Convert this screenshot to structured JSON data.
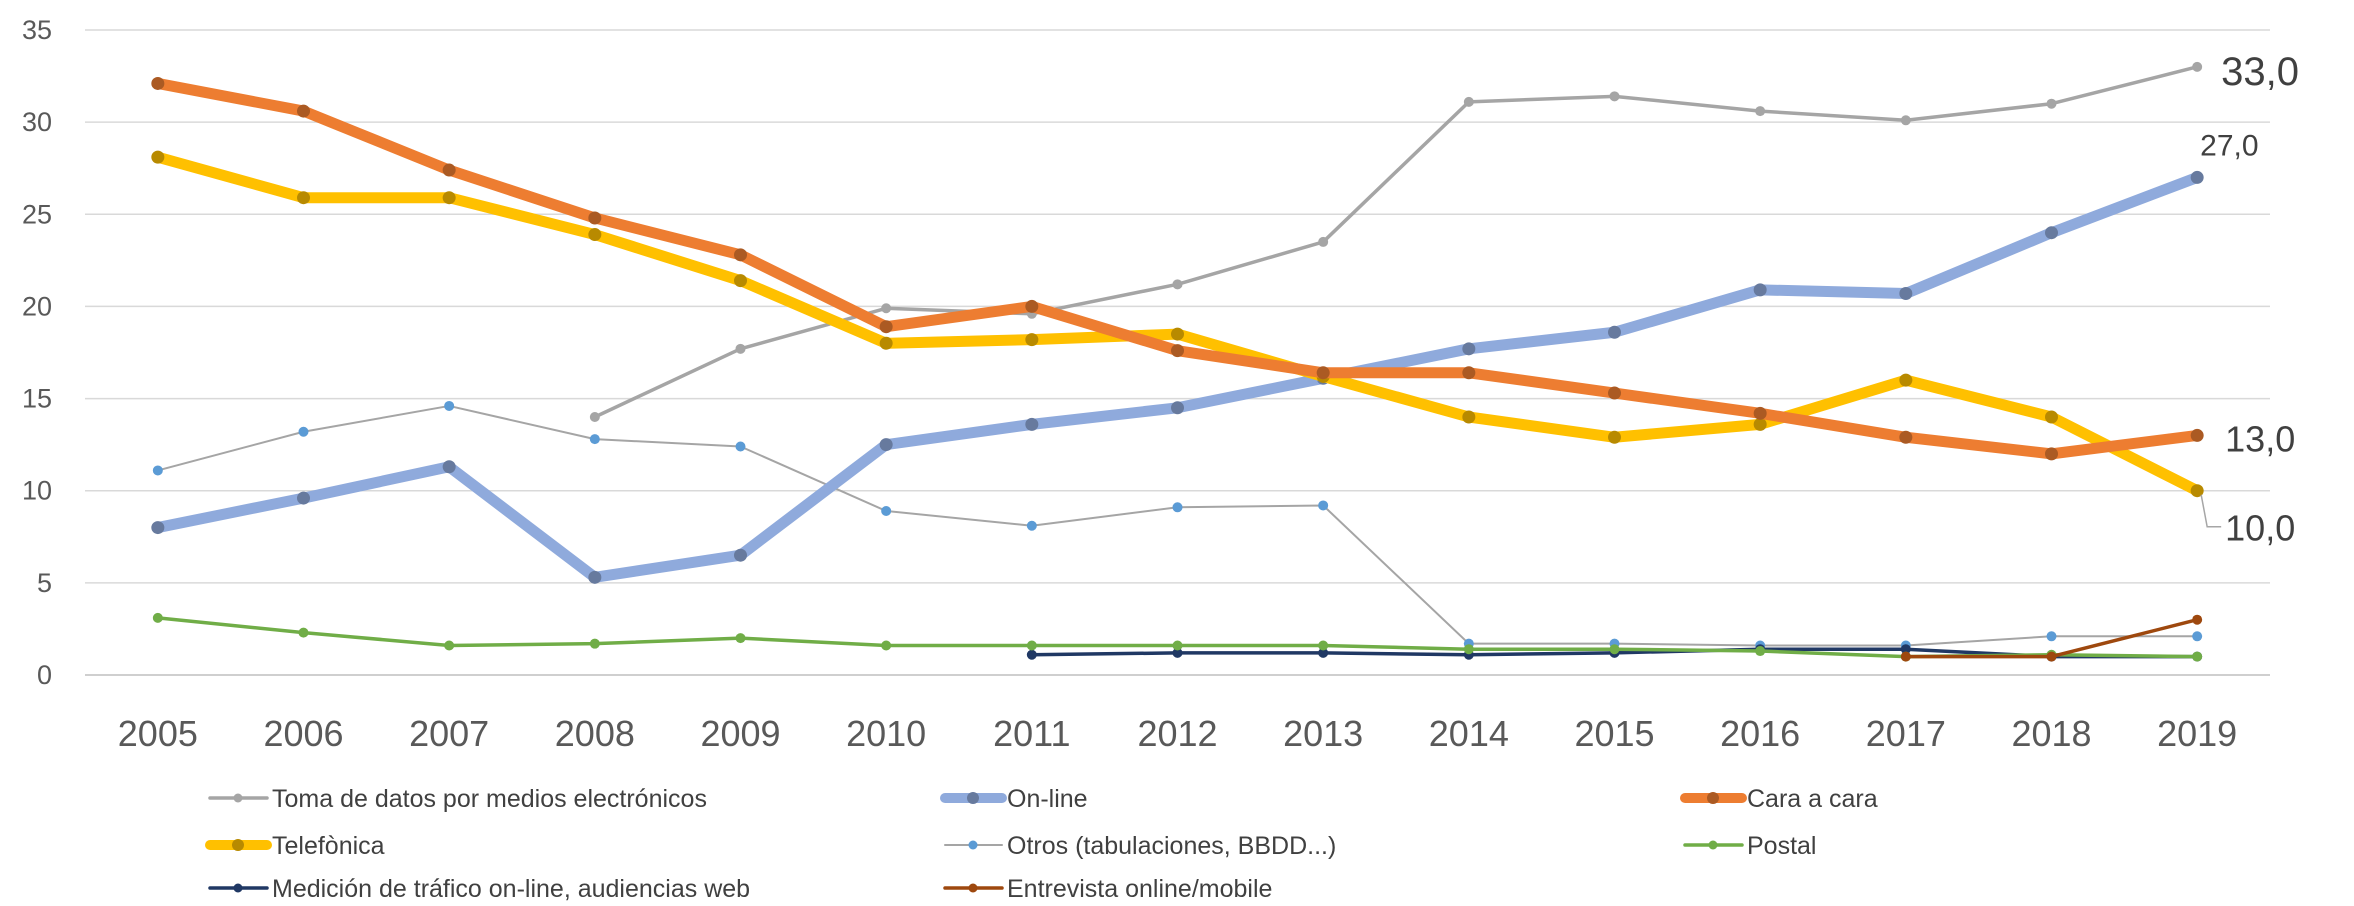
{
  "chart_data": {
    "type": "line",
    "title": "",
    "xlabel": "",
    "ylabel": "",
    "ylim": [
      0,
      35
    ],
    "y_ticks": [
      "0",
      "5",
      "10",
      "15",
      "20",
      "25",
      "30",
      "35"
    ],
    "categories": [
      "2005",
      "2006",
      "2007",
      "2008",
      "2009",
      "2010",
      "2011",
      "2012",
      "2013",
      "2014",
      "2015",
      "2016",
      "2017",
      "2018",
      "2019"
    ],
    "grid": true,
    "legend_position": "bottom",
    "series": [
      {
        "name": "Toma de datos por medios electrónicos",
        "color": "#a5a5a5",
        "weight": "thin",
        "values": [
          null,
          null,
          null,
          14.0,
          17.7,
          19.9,
          19.6,
          21.2,
          23.5,
          31.1,
          31.4,
          30.6,
          30.1,
          31.0,
          33.0
        ]
      },
      {
        "name": "On-line",
        "color": "#8faadc",
        "weight": "thick",
        "values": [
          8.0,
          9.6,
          11.3,
          5.3,
          6.5,
          12.5,
          13.6,
          14.5,
          16.1,
          17.7,
          18.6,
          20.9,
          20.7,
          24.0,
          27.0
        ]
      },
      {
        "name": "Cara a cara",
        "color": "#ed7d31",
        "weight": "thick",
        "values": [
          32.1,
          30.6,
          27.4,
          24.8,
          22.8,
          18.9,
          20.0,
          17.6,
          16.4,
          16.4,
          15.3,
          14.2,
          12.9,
          12.0,
          13.0
        ]
      },
      {
        "name": "Telefònica",
        "color": "#ffc000",
        "weight": "thick",
        "values": [
          28.1,
          25.9,
          25.9,
          23.9,
          21.4,
          18.0,
          18.2,
          18.5,
          16.2,
          14.0,
          12.9,
          13.6,
          16.0,
          14.0,
          10.0
        ]
      },
      {
        "name": "Otros (tabulaciones, BBDD...)",
        "color": "#a5a5a5",
        "markerColor": "#5b9bd5",
        "weight": "hair",
        "values": [
          11.1,
          13.2,
          14.6,
          12.8,
          12.4,
          8.9,
          8.1,
          9.1,
          9.2,
          1.7,
          1.7,
          1.6,
          1.6,
          2.1,
          2.1
        ]
      },
      {
        "name": "Postal",
        "color": "#70ad47",
        "weight": "thin",
        "values": [
          3.1,
          2.3,
          1.6,
          1.7,
          2.0,
          1.6,
          1.6,
          1.6,
          1.6,
          1.4,
          1.4,
          1.3,
          1.0,
          1.1,
          1.0
        ]
      },
      {
        "name": "Medición de tráfico on-line, audiencias web",
        "color": "#203864",
        "weight": "thin",
        "values": [
          null,
          null,
          null,
          null,
          null,
          null,
          1.1,
          1.2,
          1.2,
          1.1,
          1.2,
          1.4,
          1.4,
          1.0,
          1.0
        ]
      },
      {
        "name": "Entrevista online/mobile",
        "color": "#9e480e",
        "weight": "thin",
        "values": [
          null,
          null,
          null,
          null,
          null,
          null,
          null,
          null,
          null,
          null,
          null,
          null,
          1.0,
          1.0,
          3.0
        ]
      }
    ],
    "data_labels": [
      {
        "series": "Toma de datos por medios electrónicos",
        "category": "2019",
        "text": "33,0"
      },
      {
        "series": "On-line",
        "category": "2019",
        "text": "27,0"
      },
      {
        "series": "Cara a cara",
        "category": "2019",
        "text": "13,0"
      },
      {
        "series": "Telefònica",
        "category": "2019",
        "text": "10,0"
      }
    ]
  }
}
